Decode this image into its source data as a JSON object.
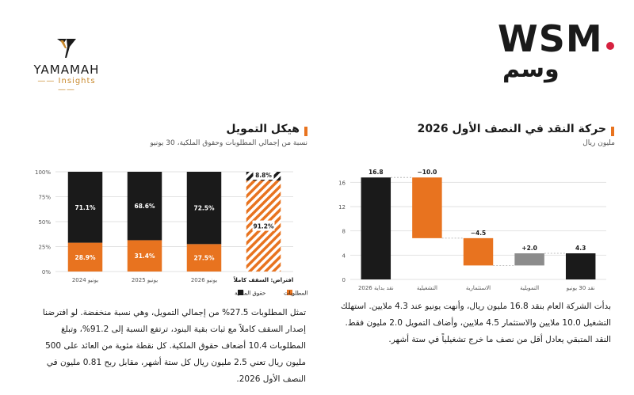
{
  "brand": {
    "wsm_logo_text": "WSM",
    "wsm_arabic": "وسم",
    "yamamah_name": "YAMAMAH",
    "yamamah_sub": "Insights",
    "accent_color": "#e8731f",
    "dot_color": "#d6213f"
  },
  "left_panel": {
    "title": "هيكل التمويل",
    "subtitle": "نسبة من إجمالي المطلوبات وحقوق الملكية، 30 يونيو",
    "paragraph": "تمثل المطلوبات 27.5% من إجمالي التمويل، وهي نسبة منخفضة. لو افترضنا إصدار السقف كاملاً مع ثبات بقية البنود، ترتفع النسبة إلى 91.2%، وتبلغ المطلوبات 10.4 أضعاف حقوق الملكية. كل نقطة مئوية من العائد على 500 مليون ريال تعني 2.5 مليون ريال كل ستة أشهر، مقابل ربح 0.81 مليون في النصف الأول 2026."
  },
  "right_panel": {
    "title": "حركة النقد في النصف الأول 2026",
    "subtitle": "مليون ريال",
    "paragraph": "بدأت الشركة العام بنقد 16.8 مليون ريال، وأنهت يونيو عند 4.3 ملايين. استهلك التشغيل 10.0 ملايين والاستثمار 4.5 ملايين، وأضاف التمويل 2.0 مليون فقط. النقد المتبقي يعادل أقل من نصف ما خرج تشغيلياً في ستة أشهر."
  },
  "chart_data": [
    {
      "type": "bar",
      "stacked": true,
      "categories": [
        "يونيو 2024",
        "يونيو 2025",
        "يونيو 2026",
        "افتراض: السقف كاملاً"
      ],
      "series": [
        {
          "name": "المطلوبات",
          "values": [
            28.9,
            31.4,
            27.5,
            91.2
          ],
          "labels": [
            "28.9%",
            "31.4%",
            "27.5%",
            "91.2%"
          ],
          "color": "#e8731f"
        },
        {
          "name": "حقوق الملكية",
          "values": [
            71.1,
            68.6,
            72.5,
            8.8
          ],
          "labels": [
            "71.1%",
            "68.6%",
            "72.5%",
            "8.8%"
          ],
          "color": "#1a1a1a"
        }
      ],
      "hatched_category_index": 3,
      "yticks": [
        "0%",
        "25%",
        "50%",
        "75%",
        "100%"
      ],
      "ylim": [
        0,
        100
      ],
      "grid": true,
      "legend_placement": "bottom-right"
    },
    {
      "type": "waterfall",
      "categories": [
        "نقد بداية 2026",
        "التشغيلية",
        "الاستثمارية",
        "التمويلية",
        "نقد 30 يونيو"
      ],
      "values": [
        16.8,
        -10.0,
        -4.5,
        2.0,
        4.3
      ],
      "labels": [
        "16.8",
        "−10.0",
        "−4.5",
        "+2.0",
        "4.3"
      ],
      "kinds": [
        "total",
        "delta",
        "delta",
        "delta",
        "total"
      ],
      "colors": {
        "total": "#1a1a1a",
        "negative": "#e8731f",
        "positive": "#8c8c8c"
      },
      "yticks": [
        "0",
        "4",
        "8",
        "12",
        "16"
      ],
      "ylim": [
        0,
        18
      ],
      "grid": true
    }
  ]
}
